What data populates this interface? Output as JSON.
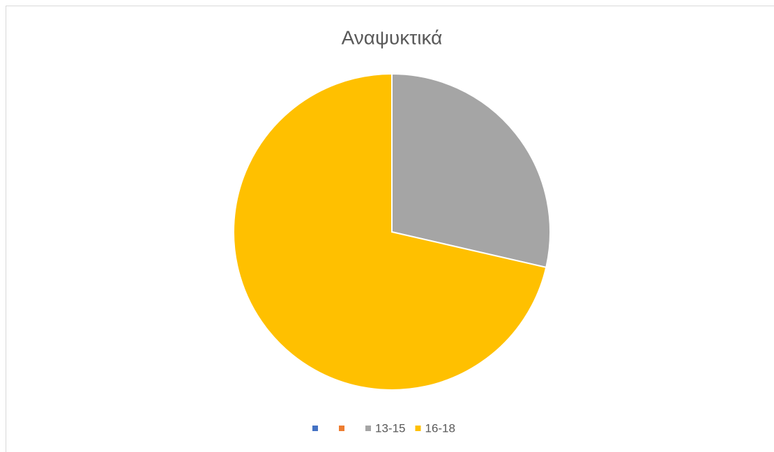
{
  "chart_data": {
    "type": "pie",
    "title": "Αναψυκτικά",
    "categories": [
      null,
      null,
      "13-15",
      "16-18"
    ],
    "values": [
      0,
      0,
      28.6,
      71.4
    ],
    "colors": [
      "#4472c4",
      "#ed7d31",
      "#a5a5a5",
      "#ffc000"
    ],
    "legend": "bottom"
  }
}
